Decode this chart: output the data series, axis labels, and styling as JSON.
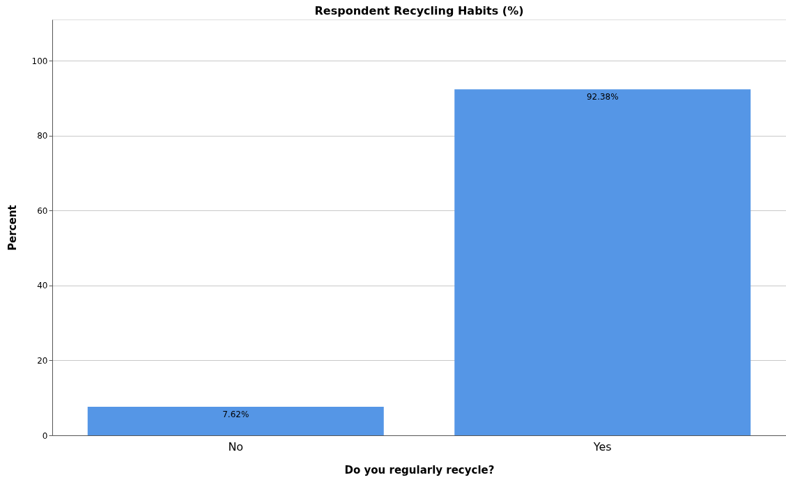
{
  "chart_data": {
    "type": "bar",
    "title": "Respondent Recycling Habits (%)",
    "xlabel": "Do you regularly recycle?",
    "ylabel": "Percent",
    "categories": [
      "No",
      "Yes"
    ],
    "values": [
      7.62,
      92.38
    ],
    "value_labels": [
      "7.62%",
      "92.38%"
    ],
    "color": "#5596e6",
    "ylim": [
      0,
      111
    ],
    "yticks": [
      0,
      20,
      40,
      60,
      80,
      100
    ],
    "grid": "y"
  }
}
